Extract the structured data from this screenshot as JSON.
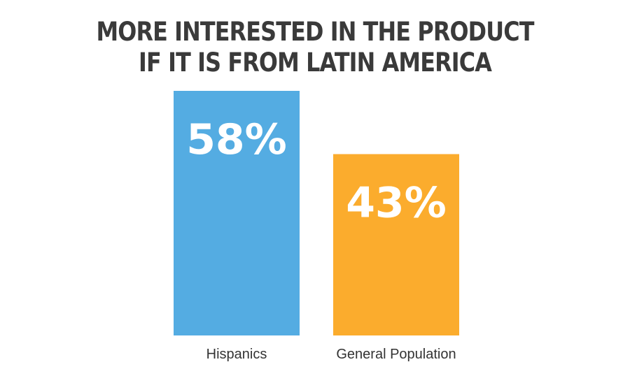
{
  "chart_data": {
    "type": "bar",
    "title_lines": [
      "MORE INTERESTED IN THE PRODUCT",
      "IF IT IS FROM LATIN AMERICA"
    ],
    "categories": [
      "Hispanics",
      "General Population"
    ],
    "values": [
      58,
      43
    ],
    "value_labels": [
      "58%",
      "43%"
    ],
    "colors": [
      "#54ACE2",
      "#FBAC2D"
    ],
    "ylim": [
      0,
      58
    ],
    "grid": false,
    "legend": "none"
  }
}
